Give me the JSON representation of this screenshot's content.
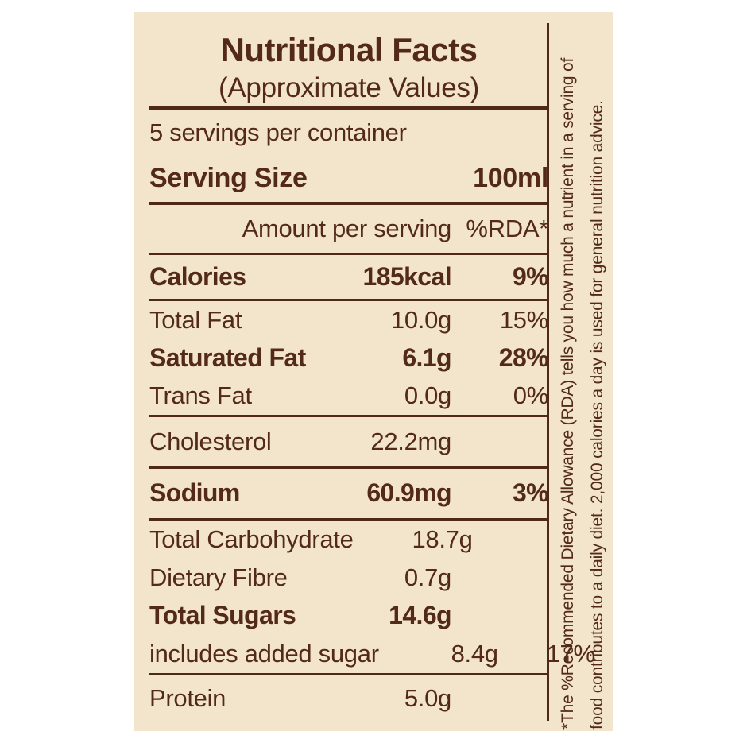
{
  "label": {
    "title": "Nutritional Facts",
    "subtitle": "(Approximate Values)",
    "servings_per_container": "5 servings per container",
    "serving_size": {
      "name": "Serving Size",
      "value": "100ml"
    },
    "column_headers": {
      "amount": "Amount per serving",
      "rda": "%RDA*"
    },
    "rows": [
      {
        "name": "Calories",
        "amount": "185kcal",
        "rda": "9%"
      },
      {
        "name": "Total Fat",
        "amount": "10.0g",
        "rda": "15%"
      },
      {
        "name": "Saturated Fat",
        "amount": "6.1g",
        "rda": "28%"
      },
      {
        "name": "Trans Fat",
        "amount": "0.0g",
        "rda": "0%"
      },
      {
        "name": "Cholesterol",
        "amount": "22.2mg",
        "rda": ""
      },
      {
        "name": "Sodium",
        "amount": "60.9mg",
        "rda": "3%"
      },
      {
        "name": "Total Carbohydrate",
        "amount": "18.7g",
        "rda": ""
      },
      {
        "name": "Dietary Fibre",
        "amount": "0.7g",
        "rda": ""
      },
      {
        "name": "Total Sugars",
        "amount": "14.6g",
        "rda": ""
      },
      {
        "name": "includes added sugar",
        "amount": "8.4g",
        "rda": "17%"
      },
      {
        "name": "Protein",
        "amount": "5.0g",
        "rda": ""
      }
    ],
    "footnote": {
      "line1": "*The %Recommended Dietary Allowance (RDA) tells you how much a nutrient in a serving of",
      "line2": "food contributes to a daily diet. 2,000 calories a day is used for general nutrition advice."
    },
    "colors": {
      "panel_background": "#f2e5cc",
      "page_background": "#ffffff",
      "text_brown": "#53291a",
      "rule_brown": "#4f2817"
    }
  }
}
